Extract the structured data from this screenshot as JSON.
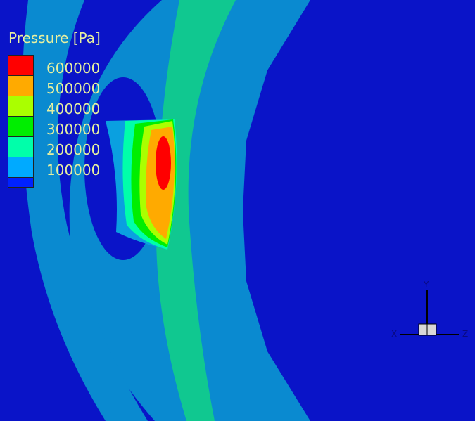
{
  "legend": {
    "title": "Pressure [Pa]",
    "labels": [
      "600000",
      "500000",
      "400000",
      "300000",
      "200000",
      "100000"
    ],
    "colors": [
      "#ff0000",
      "#ffaa00",
      "#aaff00",
      "#00ee00",
      "#00ffaa",
      "#00aaff",
      "#0022ff"
    ]
  },
  "triad": {
    "x": "X",
    "y": "Y",
    "z": "Z"
  },
  "colors": {
    "background": "#0a14c8",
    "low": "#0a8ad0",
    "mid": "#10c890"
  }
}
